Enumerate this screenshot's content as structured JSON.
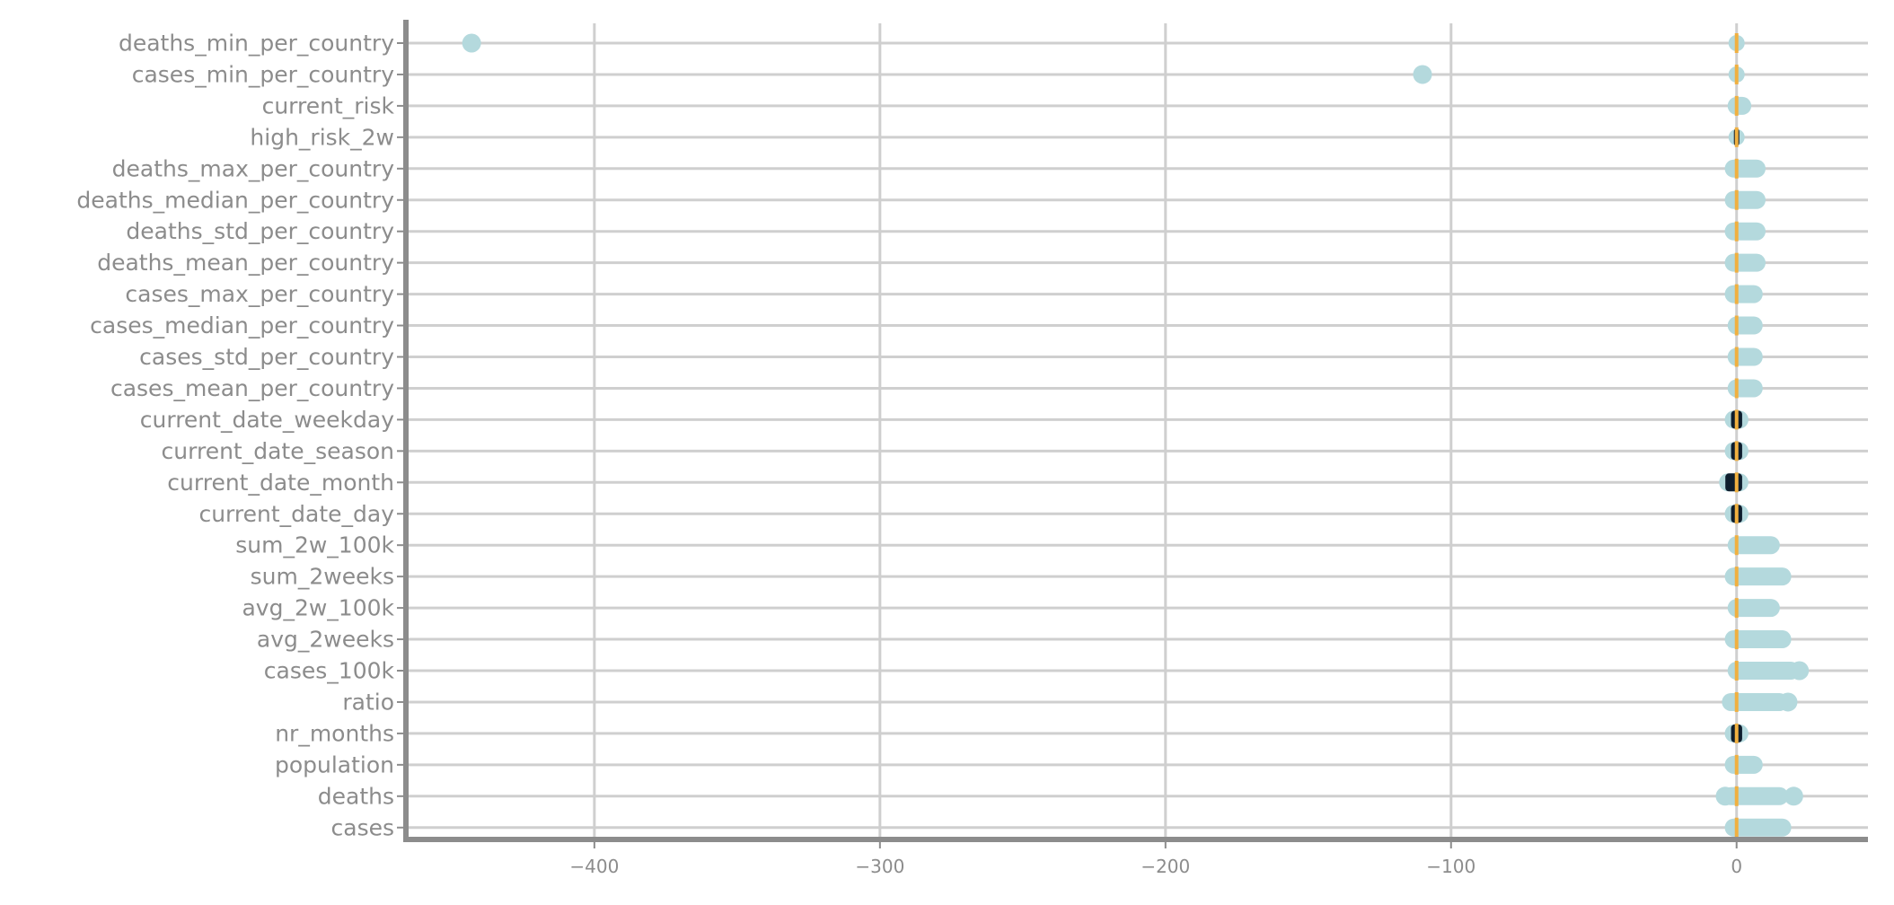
{
  "chart_data": {
    "type": "scatter",
    "title": "",
    "xlabel": "",
    "ylabel": "",
    "xlim": [
      -466,
      46
    ],
    "xticks": [
      -400,
      -300,
      -200,
      -100,
      0
    ],
    "xtick_labels": [
      "−400",
      "−300",
      "−200",
      "−100",
      "0"
    ],
    "grid": true,
    "legend": "none",
    "colors": {
      "points": "#b4d9dd",
      "median": "#f0b040",
      "grid": "#cfcfcf",
      "axis": "#8c8c8c",
      "dark": "#0e1e2e"
    },
    "categories": [
      "deaths_min_per_country",
      "cases_min_per_country",
      "current_risk",
      "high_risk_2w",
      "deaths_max_per_country",
      "deaths_median_per_country",
      "deaths_std_per_country",
      "deaths_mean_per_country",
      "cases_max_per_country",
      "cases_median_per_country",
      "cases_std_per_country",
      "cases_mean_per_country",
      "current_date_weekday",
      "current_date_season",
      "current_date_month",
      "current_date_day",
      "sum_2w_100k",
      "sum_2weeks",
      "avg_2w_100k",
      "avg_2weeks",
      "cases_100k",
      "ratio",
      "nr_months",
      "population",
      "deaths",
      "cases"
    ],
    "ranges": [
      [
        0,
        0
      ],
      [
        0,
        0
      ],
      [
        0,
        2
      ],
      [
        0,
        0
      ],
      [
        -1,
        7
      ],
      [
        -1,
        7
      ],
      [
        -1,
        7
      ],
      [
        -1,
        7
      ],
      [
        -1,
        6
      ],
      [
        0,
        6
      ],
      [
        0,
        6
      ],
      [
        0,
        6
      ],
      [
        -1,
        1
      ],
      [
        -1,
        1
      ],
      [
        -3,
        1
      ],
      [
        -1,
        1
      ],
      [
        0,
        12
      ],
      [
        -1,
        16
      ],
      [
        0,
        12
      ],
      [
        -1,
        16
      ],
      [
        0,
        19
      ],
      [
        -2,
        15
      ],
      [
        -1,
        1
      ],
      [
        -1,
        6
      ],
      [
        -2,
        15
      ],
      [
        -1,
        16
      ]
    ],
    "outliers": [
      [
        -443
      ],
      [
        -110
      ],
      [],
      [],
      [],
      [],
      [],
      [],
      [],
      [],
      [],
      [],
      [],
      [],
      [],
      [],
      [],
      [],
      [],
      [],
      [
        22
      ],
      [
        18
      ],
      [],
      [],
      [
        -4,
        20
      ],
      []
    ],
    "median": [
      0,
      0,
      0,
      0,
      0,
      0,
      0,
      0,
      0,
      0,
      0,
      0,
      0,
      0,
      0,
      0,
      0,
      0,
      0,
      0,
      0,
      0,
      0,
      0,
      0,
      0
    ],
    "dark_marks": [
      false,
      false,
      false,
      true,
      false,
      false,
      false,
      false,
      false,
      false,
      false,
      false,
      true,
      true,
      true,
      true,
      false,
      false,
      false,
      false,
      false,
      false,
      true,
      false,
      false,
      false
    ]
  }
}
